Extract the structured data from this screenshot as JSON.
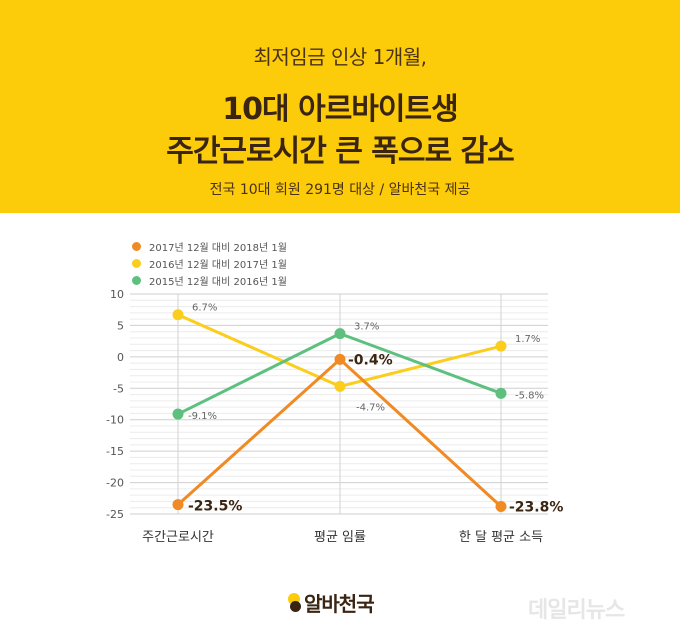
{
  "header": {
    "pretitle": "최저임금 인상 1개월,",
    "title_line1": "10대 아르바이트생",
    "title_line2": "주간근로시간 큰 폭으로 감소",
    "source": "전국 10대 회원 291명 대상 / 알바천국 제공"
  },
  "chart_data": {
    "type": "line",
    "categories": [
      "주간근로시간",
      "평균 임률",
      "한 달 평균 소득"
    ],
    "yticks": [
      "10",
      "5",
      "0",
      "-5",
      "-10",
      "-15",
      "-20",
      "-25"
    ],
    "ylim": [
      -25,
      10
    ],
    "grid": true,
    "legend_position": "top-left",
    "series": [
      {
        "name": "2017년 12월 대비 2018년 1월",
        "color": "#f08a24",
        "values": [
          -23.5,
          -0.4,
          -23.8
        ],
        "labels": [
          "-23.5%",
          "-0.4%",
          "-23.8%"
        ],
        "emphasis": true
      },
      {
        "name": "2016년 12월 대비 2017년 1월",
        "color": "#fbcd1c",
        "values": [
          6.7,
          -4.7,
          1.7
        ],
        "labels": [
          "6.7%",
          "-4.7%",
          "1.7%"
        ],
        "emphasis": false
      },
      {
        "name": "2015년 12월 대비 2016년 1월",
        "color": "#5ec07f",
        "values": [
          -9.1,
          3.7,
          -5.8
        ],
        "labels": [
          "-9.1%",
          "3.7%",
          "-5.8%"
        ],
        "emphasis": false
      }
    ]
  },
  "footer": {
    "logo": "알바천국",
    "watermark": "데일리뉴스"
  }
}
